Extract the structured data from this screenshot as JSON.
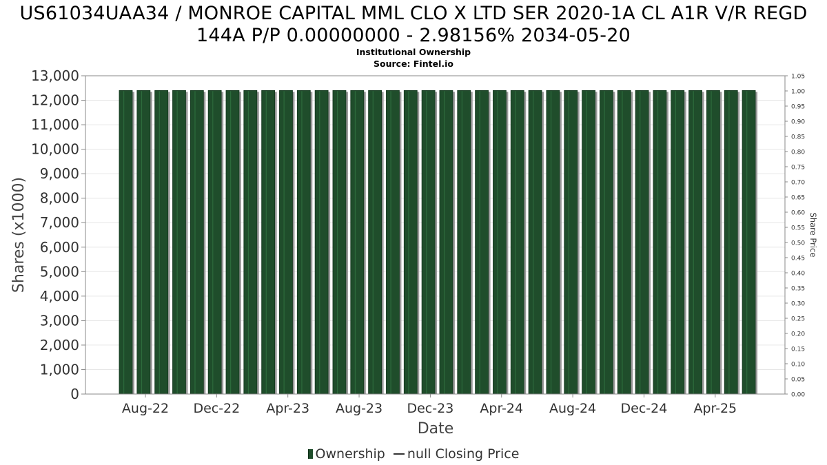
{
  "header": {
    "title_line1": "US61034UAA34 / MONROE CAPITAL MML CLO X LTD SER 2020-1A CL A1R V/R REGD",
    "title_line2": "144A P/P 0.00000000 - 2.98156% 2034-05-20",
    "subtitle": "Institutional Ownership",
    "source": "Source: Fintel.io"
  },
  "legend": {
    "ownership": "Ownership",
    "price": "null Closing Price"
  },
  "colors": {
    "bar_fill": "#1f4d2b",
    "bar_stripe": "#2d6b3c",
    "bar_shadow": "#9a9a9a",
    "grid": "#e6e6e6",
    "axis": "#888888",
    "tick_text": "#333333"
  },
  "chart_data": {
    "type": "bar",
    "xlabel": "Date",
    "ylabel": "Shares (x1000)",
    "y2label": "Share Price",
    "ylim": [
      0,
      13000
    ],
    "y_ticks": [
      "0",
      "1,000",
      "2,000",
      "3,000",
      "4,000",
      "5,000",
      "6,000",
      "7,000",
      "8,000",
      "9,000",
      "10,000",
      "11,000",
      "12,000",
      "13,000"
    ],
    "y2lim": [
      0,
      1.05
    ],
    "y2_ticks": [
      "0.00",
      "0.05",
      "0.10",
      "0.15",
      "0.20",
      "0.25",
      "0.30",
      "0.35",
      "0.40",
      "0.45",
      "0.50",
      "0.55",
      "0.60",
      "0.65",
      "0.70",
      "0.75",
      "0.80",
      "0.85",
      "0.90",
      "0.95",
      "1.00",
      "1.05"
    ],
    "x_ticks": [
      "Aug-22",
      "Dec-22",
      "Apr-23",
      "Aug-23",
      "Dec-23",
      "Apr-24",
      "Aug-24",
      "Dec-24",
      "Apr-25"
    ],
    "grid": true,
    "legend_position": "bottom",
    "series": [
      {
        "name": "Ownership",
        "values": [
          12400,
          12400,
          12400,
          12400,
          12400,
          12400,
          12400,
          12400,
          12400,
          12400,
          12400,
          12400,
          12400,
          12400,
          12400,
          12400,
          12400,
          12400,
          12400,
          12400,
          12400,
          12400,
          12400,
          12400,
          12400,
          12400,
          12400,
          12400,
          12400,
          12400,
          12400,
          12400,
          12400,
          12400,
          12400,
          12400
        ]
      }
    ]
  }
}
